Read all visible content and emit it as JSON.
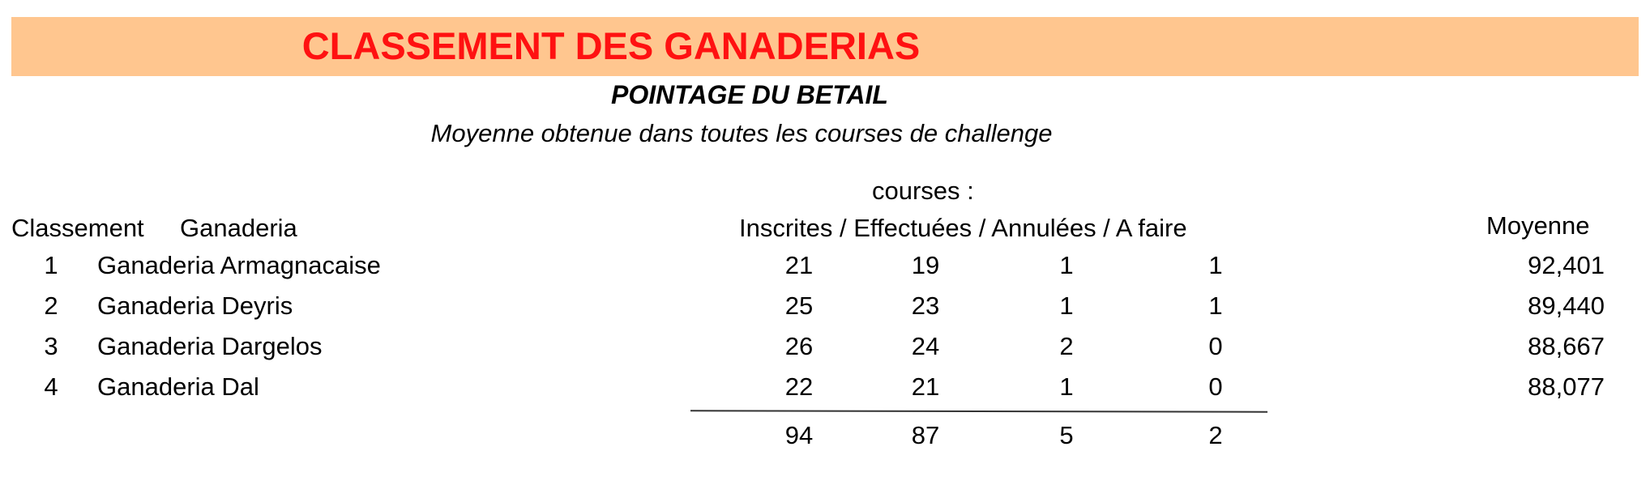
{
  "header": {
    "title": "CLASSEMENT DES GANADERIAS",
    "subtitle": "POINTAGE DU BETAIL",
    "description": "Moyenne obtenue dans toutes les courses de challenge",
    "accent_color": "#ff1111",
    "banner_color": "#ffc68f"
  },
  "table": {
    "group_label": "courses :",
    "columns": {
      "classement": "Classement",
      "ganaderia": "Ganaderia",
      "counts": "Inscrites / Effectuées / Annulées / A faire",
      "moyenne": "Moyenne"
    },
    "rows": [
      {
        "rank": "1",
        "name": "Ganaderia Armagnacaise",
        "inscrites": "21",
        "effectuees": "19",
        "annulees": "1",
        "a_faire": "1",
        "moyenne": "92,401"
      },
      {
        "rank": "2",
        "name": "Ganaderia Deyris",
        "inscrites": "25",
        "effectuees": "23",
        "annulees": "1",
        "a_faire": "1",
        "moyenne": "89,440"
      },
      {
        "rank": "3",
        "name": "Ganaderia Dargelos",
        "inscrites": "26",
        "effectuees": "24",
        "annulees": "2",
        "a_faire": "0",
        "moyenne": "88,667"
      },
      {
        "rank": "4",
        "name": "Ganaderia Dal",
        "inscrites": "22",
        "effectuees": "21",
        "annulees": "1",
        "a_faire": "0",
        "moyenne": "88,077"
      }
    ],
    "totals": {
      "inscrites": "94",
      "effectuees": "87",
      "annulees": "5",
      "a_faire": "2"
    }
  }
}
